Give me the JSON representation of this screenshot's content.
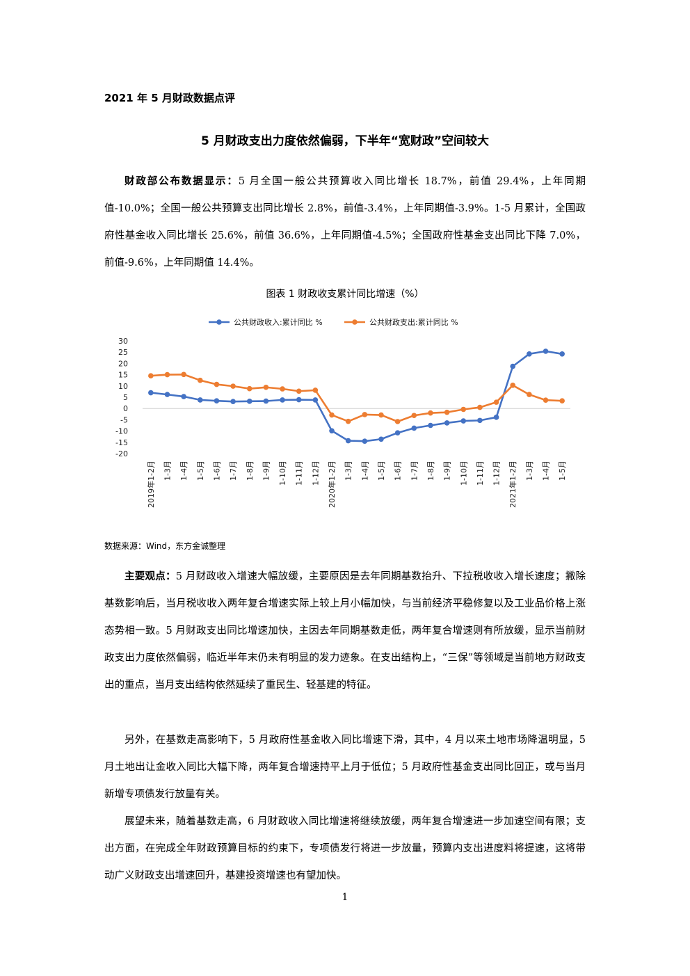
{
  "header": {
    "label": "2021 年 5 月财政数据点评"
  },
  "title": "5 月财政支出力度依然偏弱，下半年“宽财政”空间较大",
  "intro": {
    "bold": "财政部公布数据显示：",
    "text": "5 月全国一般公共预算收入同比增长 18.7%，前值 29.4%，上年同期值-10.0%；全国一般公共预算支出同比增长 2.8%，前值-3.4%，上年同期值-3.9%。1-5 月累计，全国政府性基金收入同比增长 25.6%，前值 36.6%，上年同期值-4.5%；全国政府性基金支出同比下降 7.0%，前值-9.6%，上年同期值 14.4%。"
  },
  "figure": {
    "title": "图表 1   财政收支累计同比增速（%）",
    "source": "数据来源：Wind，东方金诚整理"
  },
  "chart_data": {
    "type": "line",
    "categories": [
      "2019年1-2月",
      "1-3月",
      "1-4月",
      "1-5月",
      "1-6月",
      "1-7月",
      "1-8月",
      "1-9月",
      "1-10月",
      "1-11月",
      "1-12月",
      "2020年1-2月",
      "1-3月",
      "1-4月",
      "1-5月",
      "1-6月",
      "1-7月",
      "1-8月",
      "1-9月",
      "1-10月",
      "1-11月",
      "1-12月",
      "2021年1-2月",
      "1-3月",
      "1-4月",
      "1-5月"
    ],
    "series": [
      {
        "name": "公共财政收入:累计同比 %",
        "color": "#4472C4",
        "values": [
          7.0,
          6.2,
          5.3,
          3.8,
          3.4,
          3.1,
          3.2,
          3.3,
          3.8,
          3.9,
          3.8,
          -9.9,
          -14.3,
          -14.5,
          -13.6,
          -10.8,
          -8.7,
          -7.5,
          -6.4,
          -5.5,
          -5.3,
          -3.9,
          18.7,
          24.2,
          25.4,
          24.2
        ]
      },
      {
        "name": "公共财政支出:累计同比 %",
        "color": "#ED7D31",
        "values": [
          14.5,
          15.0,
          15.1,
          12.5,
          10.7,
          9.9,
          8.8,
          9.4,
          8.7,
          7.7,
          8.1,
          -2.9,
          -5.7,
          -2.7,
          -2.9,
          -5.8,
          -3.1,
          -2.0,
          -1.7,
          -0.4,
          0.5,
          2.8,
          10.3,
          6.2,
          3.7,
          3.4
        ]
      }
    ],
    "yticks": [
      "30",
      "25",
      "20",
      "15",
      "10",
      "5",
      "0",
      "-5",
      "-10",
      "-15",
      "-20"
    ],
    "ylim": [
      -20,
      30
    ],
    "legend": "top"
  },
  "views": {
    "bold": "主要观点：",
    "text": "5 月财政收入增速大幅放缓，主要原因是去年同期基数抬升、下拉税收收入增长速度；撇除基数影响后，当月税收收入两年复合增速实际上较上月小幅加快，与当前经济平稳修复以及工业品价格上涨态势相一致。5 月财政支出同比增速加快，主因去年同期基数走低，两年复合增速则有所放缓，显示当前财政支出力度依然偏弱，临近半年末仍未有明显的发力迹象。在支出结构上，“三保”等领域是当前地方财政支出的重点，当月支出结构依然延续了重民生、轻基建的特征。"
  },
  "para2": "另外，在基数走高影响下，5 月政府性基金收入同比增速下滑，其中，4 月以来土地市场降温明显，5 月土地出让金收入同比大幅下降，两年复合增速持平上月于低位；5 月政府性基金支出同比回正，或与当月新增专项债发行放量有关。",
  "para3": "展望未来，随着基数走高，6 月财政收入同比增速将继续放缓，两年复合增速进一步加速空间有限；支出方面，在完成全年财政预算目标的约束下，专项债发行将进一步放量，预算内支出进度料将提速，这将带动广义财政支出增速回升，基建投资增速也有望加快。",
  "page_number": "1"
}
